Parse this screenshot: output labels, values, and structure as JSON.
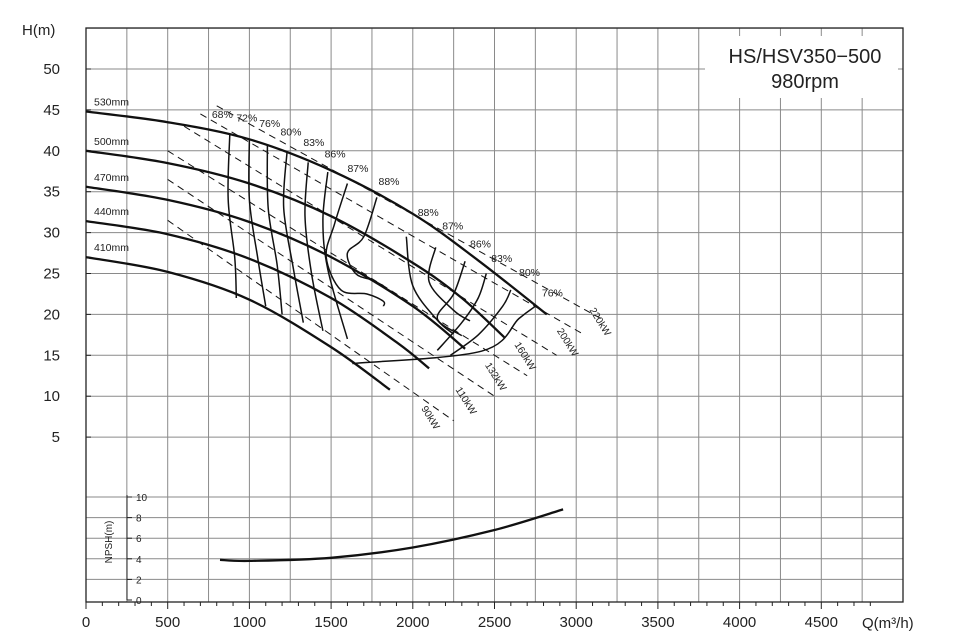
{
  "chart_data": {
    "type": "line",
    "title": "HS/HSV350−500",
    "subtitle": "980rpm",
    "xlabel": "Q(m³/h)",
    "ylabel": "H(m)",
    "x_ticks": [
      "0",
      "500",
      "1000",
      "1500",
      "2000",
      "2500",
      "3000",
      "3500",
      "4000",
      "4500"
    ],
    "xlim": [
      0,
      5000
    ],
    "ylim": [
      0,
      55
    ],
    "y_ticks": [
      "5",
      "10",
      "15",
      "20",
      "25",
      "30",
      "35",
      "40",
      "45",
      "50"
    ],
    "grid": true,
    "head_curves": [
      {
        "name": "530mm",
        "points": [
          [
            0,
            44.8
          ],
          [
            500,
            43.5
          ],
          [
            1000,
            41.4
          ],
          [
            1500,
            37.6
          ],
          [
            2000,
            32.3
          ],
          [
            2400,
            26.6
          ],
          [
            2820,
            20.0
          ]
        ]
      },
      {
        "name": "500mm",
        "points": [
          [
            0,
            40.0
          ],
          [
            500,
            38.5
          ],
          [
            1000,
            36.0
          ],
          [
            1500,
            32.0
          ],
          [
            2000,
            26.3
          ],
          [
            2300,
            22.0
          ],
          [
            2560,
            17.2
          ]
        ]
      },
      {
        "name": "470mm",
        "points": [
          [
            0,
            35.6
          ],
          [
            500,
            34.0
          ],
          [
            1000,
            31.3
          ],
          [
            1500,
            27.0
          ],
          [
            2000,
            21.0
          ],
          [
            2320,
            15.8
          ]
        ]
      },
      {
        "name": "440mm",
        "points": [
          [
            0,
            31.4
          ],
          [
            500,
            29.8
          ],
          [
            1000,
            26.8
          ],
          [
            1500,
            22.0
          ],
          [
            1900,
            16.6
          ],
          [
            2100,
            13.4
          ]
        ]
      },
      {
        "name": "410mm",
        "points": [
          [
            0,
            27.0
          ],
          [
            500,
            25.2
          ],
          [
            1000,
            21.8
          ],
          [
            1500,
            16.0
          ],
          [
            1860,
            10.8
          ]
        ]
      }
    ],
    "efficiency_labels": [
      "68%",
      "72%",
      "76%",
      "80%",
      "83%",
      "86%",
      "87%",
      "88%",
      "88%",
      "87%",
      "86%",
      "83%",
      "80%",
      "76%"
    ],
    "efficiency_curves": [
      {
        "points": [
          [
            880,
            42.0
          ],
          [
            870,
            34.0
          ],
          [
            910,
            27.0
          ],
          [
            920,
            22.0
          ]
        ]
      },
      {
        "points": [
          [
            1000,
            41.5
          ],
          [
            1000,
            34.0
          ],
          [
            1050,
            27.0
          ],
          [
            1100,
            21.0
          ]
        ]
      },
      {
        "points": [
          [
            1110,
            40.8
          ],
          [
            1115,
            33.0
          ],
          [
            1170,
            26.0
          ],
          [
            1200,
            20.0
          ]
        ]
      },
      {
        "points": [
          [
            1230,
            39.8
          ],
          [
            1210,
            33.0
          ],
          [
            1270,
            25.5
          ],
          [
            1330,
            19.0
          ]
        ]
      },
      {
        "points": [
          [
            1360,
            38.6
          ],
          [
            1340,
            32.0
          ],
          [
            1380,
            25.0
          ],
          [
            1450,
            18.0
          ]
        ]
      },
      {
        "points": [
          [
            1480,
            37.4
          ],
          [
            1450,
            31.5
          ],
          [
            1480,
            25.5
          ],
          [
            1600,
            17.0
          ]
        ]
      },
      {
        "points": [
          [
            1600,
            36.0
          ],
          [
            1520,
            31.0
          ],
          [
            1470,
            27.0
          ],
          [
            1560,
            23.0
          ],
          [
            1720,
            22.5
          ],
          [
            1820,
            21.6
          ],
          [
            1820,
            21.0
          ]
        ]
      },
      {
        "points": [
          [
            1780,
            34.3
          ],
          [
            1700,
            29.5
          ],
          [
            1600,
            27.5
          ],
          [
            1650,
            25.0
          ],
          [
            1750,
            24.2
          ],
          [
            1820,
            23.5
          ]
        ]
      },
      {
        "points": [
          [
            1960,
            29.5
          ],
          [
            2000,
            23.5
          ],
          [
            2150,
            19.3
          ],
          [
            2250,
            17.6
          ]
        ]
      },
      {
        "points": [
          [
            2140,
            28.2
          ],
          [
            2100,
            24.0
          ],
          [
            2250,
            20.5
          ],
          [
            2350,
            19.2
          ]
        ]
      },
      {
        "points": [
          [
            2320,
            26.5
          ],
          [
            2250,
            22.5
          ],
          [
            2150,
            19.5
          ],
          [
            2300,
            17.4
          ]
        ]
      },
      {
        "points": [
          [
            2450,
            25.0
          ],
          [
            2400,
            22.0
          ],
          [
            2300,
            19.0
          ],
          [
            2150,
            15.6
          ]
        ]
      },
      {
        "points": [
          [
            2600,
            23.0
          ],
          [
            2550,
            21.0
          ],
          [
            2400,
            17.5
          ],
          [
            2230,
            15.0
          ]
        ]
      },
      {
        "points": [
          [
            2750,
            21.0
          ],
          [
            2650,
            19.5
          ],
          [
            2420,
            15.5
          ],
          [
            1630,
            14.0
          ]
        ]
      }
    ],
    "power_labels": [
      "90kW",
      "110kW",
      "132kW",
      "160kW",
      "200kW",
      "220kW"
    ],
    "power_lines": [
      {
        "points": [
          [
            500,
            31.5
          ],
          [
            2250,
            7.0
          ]
        ]
      },
      {
        "points": [
          [
            500,
            36.5
          ],
          [
            2500,
            10.0
          ]
        ]
      },
      {
        "points": [
          [
            500,
            40.0
          ],
          [
            2700,
            12.5
          ]
        ]
      },
      {
        "points": [
          [
            600,
            43.0
          ],
          [
            2880,
            15.0
          ]
        ]
      },
      {
        "points": [
          [
            700,
            44.5
          ],
          [
            3050,
            17.5
          ]
        ]
      },
      {
        "points": [
          [
            800,
            45.5
          ],
          [
            3150,
            19.5
          ]
        ]
      }
    ],
    "npsh": {
      "ylabel": "NPSH(m)",
      "ylim": [
        0,
        10
      ],
      "y_ticks": [
        "0",
        "2",
        "4",
        "6",
        "8",
        "10"
      ],
      "points": [
        [
          820,
          3.9
        ],
        [
          1000,
          3.8
        ],
        [
          1500,
          4.1
        ],
        [
          2000,
          5.1
        ],
        [
          2500,
          6.8
        ],
        [
          2920,
          8.8
        ]
      ]
    }
  }
}
